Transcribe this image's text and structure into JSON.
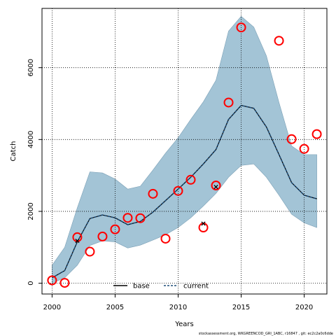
{
  "chart_data": {
    "type": "line",
    "xlabel": "Years",
    "ylabel": "Catch",
    "xlim": [
      1999.2,
      2021.8
    ],
    "ylim": [
      -300,
      7650
    ],
    "x_ticks": [
      2000,
      2005,
      2010,
      2015,
      2020
    ],
    "y_ticks": [
      0,
      2000,
      4000,
      6000
    ],
    "grid": true,
    "legend_position": "bottom-center",
    "band": {
      "color": "#a3c4d6",
      "x": [
        2000,
        2001,
        2002,
        2003,
        2004,
        2005,
        2006,
        2007,
        2008,
        2009,
        2010,
        2011,
        2012,
        2013,
        2014,
        2015,
        2016,
        2017,
        2018,
        2019,
        2020,
        2021
      ],
      "upper": [
        500,
        1000,
        2100,
        3100,
        3070,
        2900,
        2620,
        2700,
        3150,
        3620,
        4050,
        4560,
        5050,
        5650,
        7020,
        7430,
        7130,
        6330,
        5030,
        3820,
        3580,
        3580
      ],
      "lower": [
        0,
        150,
        500,
        1050,
        1180,
        1150,
        980,
        1060,
        1200,
        1350,
        1550,
        1820,
        2150,
        2500,
        2950,
        3280,
        3320,
        2950,
        2450,
        1920,
        1680,
        1550
      ]
    },
    "series": [
      {
        "name": "base",
        "style": "solid",
        "color": "#000000",
        "x": [
          2000,
          2001,
          2002,
          2003,
          2004,
          2005,
          2006,
          2007,
          2008,
          2009,
          2010,
          2011,
          2012,
          2013,
          2014,
          2015,
          2016,
          2017,
          2018,
          2019,
          2020,
          2021
        ],
        "values": [
          150,
          350,
          1150,
          1800,
          1900,
          1820,
          1630,
          1720,
          1980,
          2300,
          2620,
          2950,
          3320,
          3720,
          4560,
          4950,
          4870,
          4350,
          3580,
          2800,
          2450,
          2350
        ]
      },
      {
        "name": "current",
        "style": "dashed",
        "color": "#1f4e79",
        "x": [
          2000,
          2001,
          2002,
          2003,
          2004,
          2005,
          2006,
          2007,
          2008,
          2009,
          2010,
          2011,
          2012,
          2013,
          2014,
          2015,
          2016,
          2017,
          2018,
          2019,
          2020,
          2021
        ],
        "values": [
          150,
          350,
          1150,
          1800,
          1900,
          1820,
          1630,
          1720,
          1980,
          2300,
          2620,
          2950,
          3320,
          3720,
          4560,
          4950,
          4870,
          4350,
          3580,
          2800,
          2450,
          2350
        ]
      }
    ],
    "observed_circles": {
      "color": "#ff0000",
      "points": [
        {
          "x": 2000,
          "y": 80
        },
        {
          "x": 2001,
          "y": 10
        },
        {
          "x": 2002,
          "y": 1280
        },
        {
          "x": 2003,
          "y": 880
        },
        {
          "x": 2004,
          "y": 1300
        },
        {
          "x": 2005,
          "y": 1500
        },
        {
          "x": 2006,
          "y": 1820
        },
        {
          "x": 2007,
          "y": 1810
        },
        {
          "x": 2008,
          "y": 2490
        },
        {
          "x": 2009,
          "y": 1240
        },
        {
          "x": 2010,
          "y": 2570
        },
        {
          "x": 2011,
          "y": 2880
        },
        {
          "x": 2012,
          "y": 1550
        },
        {
          "x": 2013,
          "y": 2720
        },
        {
          "x": 2014,
          "y": 5030
        },
        {
          "x": 2015,
          "y": 7120
        },
        {
          "x": 2018,
          "y": 6750
        },
        {
          "x": 2019,
          "y": 4010
        },
        {
          "x": 2020,
          "y": 3740
        },
        {
          "x": 2021,
          "y": 4150
        }
      ]
    },
    "crosses": {
      "color": "#000000",
      "points": [
        {
          "x": 2002,
          "y": 1180
        },
        {
          "x": 2012,
          "y": 1660
        },
        {
          "x": 2013,
          "y": 2680
        }
      ]
    }
  },
  "footer": "stockassessment.org, WKGREENCOD_GRI_1ABC, r16847 , git: ec2c2a0c6dde"
}
